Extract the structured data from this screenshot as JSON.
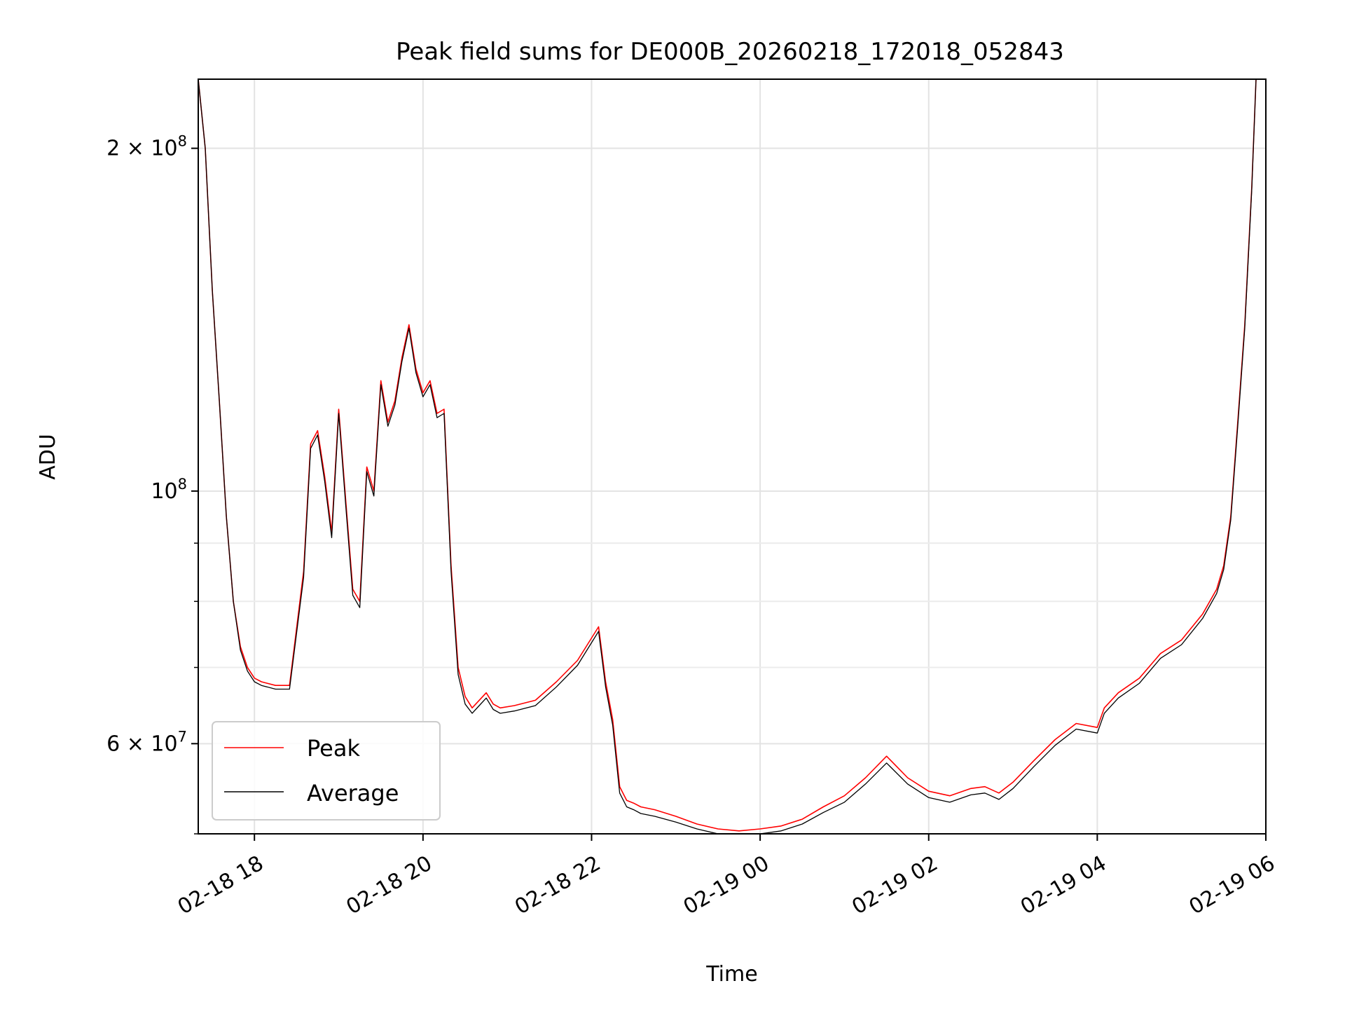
{
  "chart_data": {
    "type": "line",
    "title": "Peak field sums for DE000B_20260218_172018_052843",
    "xlabel": "Time",
    "ylabel": "ADU",
    "xlim": [
      "2026-02-18 17:20",
      "2026-02-19 06:00"
    ],
    "ylim": [
      50000000,
      230000000
    ],
    "yscale": "log",
    "grid": true,
    "legend_position": "lower-left",
    "x_ticks": [
      {
        "t": "2026-02-18 18:00",
        "label": "02-18 18"
      },
      {
        "t": "2026-02-18 20:00",
        "label": "02-18 20"
      },
      {
        "t": "2026-02-18 22:00",
        "label": "02-18 22"
      },
      {
        "t": "2026-02-19 00:00",
        "label": "02-19 00"
      },
      {
        "t": "2026-02-19 02:00",
        "label": "02-19 02"
      },
      {
        "t": "2026-02-19 04:00",
        "label": "02-19 04"
      },
      {
        "t": "2026-02-19 06:00",
        "label": "02-19 06"
      }
    ],
    "y_ticks": [
      {
        "v": 200000000,
        "mantissa": "2",
        "exp": "8"
      },
      {
        "v": 100000000,
        "mantissa": "",
        "exp": "8"
      },
      {
        "v": 60000000,
        "mantissa": "6",
        "exp": "7"
      }
    ],
    "y_minor_ticks": [
      50000000,
      70000000,
      80000000,
      90000000
    ],
    "series": [
      {
        "name": "Peak",
        "color": "#ff0000",
        "x": [
          "2026-02-18 17:20",
          "2026-02-18 17:25",
          "2026-02-18 17:30",
          "2026-02-18 17:35",
          "2026-02-18 17:40",
          "2026-02-18 17:45",
          "2026-02-18 17:50",
          "2026-02-18 17:55",
          "2026-02-18 18:00",
          "2026-02-18 18:05",
          "2026-02-18 18:15",
          "2026-02-18 18:25",
          "2026-02-18 18:35",
          "2026-02-18 18:40",
          "2026-02-18 18:45",
          "2026-02-18 18:50",
          "2026-02-18 18:55",
          "2026-02-18 19:00",
          "2026-02-18 19:05",
          "2026-02-18 19:10",
          "2026-02-18 19:15",
          "2026-02-18 19:20",
          "2026-02-18 19:25",
          "2026-02-18 19:30",
          "2026-02-18 19:35",
          "2026-02-18 19:40",
          "2026-02-18 19:45",
          "2026-02-18 19:50",
          "2026-02-18 19:55",
          "2026-02-18 20:00",
          "2026-02-18 20:05",
          "2026-02-18 20:10",
          "2026-02-18 20:15",
          "2026-02-18 20:20",
          "2026-02-18 20:25",
          "2026-02-18 20:30",
          "2026-02-18 20:35",
          "2026-02-18 20:40",
          "2026-02-18 20:45",
          "2026-02-18 20:50",
          "2026-02-18 20:55",
          "2026-02-18 21:05",
          "2026-02-18 21:20",
          "2026-02-18 21:35",
          "2026-02-18 21:50",
          "2026-02-18 22:05",
          "2026-02-18 22:10",
          "2026-02-18 22:15",
          "2026-02-18 22:20",
          "2026-02-18 22:25",
          "2026-02-18 22:30",
          "2026-02-18 22:35",
          "2026-02-18 22:45",
          "2026-02-18 23:00",
          "2026-02-18 23:15",
          "2026-02-18 23:30",
          "2026-02-18 23:45",
          "2026-02-19 00:00",
          "2026-02-19 00:15",
          "2026-02-19 00:30",
          "2026-02-19 00:45",
          "2026-02-19 01:00",
          "2026-02-19 01:15",
          "2026-02-19 01:30",
          "2026-02-19 01:45",
          "2026-02-19 02:00",
          "2026-02-19 02:15",
          "2026-02-19 02:30",
          "2026-02-19 02:40",
          "2026-02-19 02:50",
          "2026-02-19 03:00",
          "2026-02-19 03:15",
          "2026-02-19 03:30",
          "2026-02-19 03:45",
          "2026-02-19 04:00",
          "2026-02-19 04:05",
          "2026-02-19 04:15",
          "2026-02-19 04:30",
          "2026-02-19 04:45",
          "2026-02-19 05:00",
          "2026-02-19 05:15",
          "2026-02-19 05:25",
          "2026-02-19 05:30",
          "2026-02-19 05:35",
          "2026-02-19 05:40",
          "2026-02-19 05:45",
          "2026-02-19 05:50",
          "2026-02-19 05:53"
        ],
        "values": [
          230000000,
          200000000,
          150000000,
          120000000,
          95000000,
          80000000,
          73000000,
          70000000,
          68500000,
          68000000,
          67500000,
          67500000,
          85000000,
          110000000,
          113000000,
          103000000,
          92000000,
          118000000,
          98000000,
          82000000,
          80000000,
          105000000,
          100000000,
          125000000,
          115000000,
          120000000,
          131000000,
          140000000,
          128000000,
          122000000,
          125000000,
          117000000,
          118000000,
          86000000,
          70000000,
          66000000,
          64500000,
          65500000,
          66500000,
          65000000,
          64500000,
          64800000,
          65500000,
          68000000,
          71000000,
          76000000,
          68000000,
          63000000,
          55000000,
          53500000,
          53200000,
          52800000,
          52500000,
          51800000,
          51000000,
          50500000,
          50300000,
          50500000,
          50800000,
          51500000,
          52800000,
          54000000,
          56000000,
          58500000,
          56000000,
          54500000,
          54000000,
          54800000,
          55000000,
          54300000,
          55500000,
          58000000,
          60500000,
          62500000,
          62000000,
          64500000,
          66500000,
          68500000,
          72000000,
          74000000,
          78000000,
          82000000,
          86000000,
          95000000,
          115000000,
          140000000,
          185000000,
          230000000
        ]
      },
      {
        "name": "Average",
        "color": "#000000",
        "x": [
          "2026-02-18 17:20",
          "2026-02-18 17:25",
          "2026-02-18 17:30",
          "2026-02-18 17:35",
          "2026-02-18 17:40",
          "2026-02-18 17:45",
          "2026-02-18 17:50",
          "2026-02-18 17:55",
          "2026-02-18 18:00",
          "2026-02-18 18:05",
          "2026-02-18 18:15",
          "2026-02-18 18:25",
          "2026-02-18 18:35",
          "2026-02-18 18:40",
          "2026-02-18 18:45",
          "2026-02-18 18:50",
          "2026-02-18 18:55",
          "2026-02-18 19:00",
          "2026-02-18 19:05",
          "2026-02-18 19:10",
          "2026-02-18 19:15",
          "2026-02-18 19:20",
          "2026-02-18 19:25",
          "2026-02-18 19:30",
          "2026-02-18 19:35",
          "2026-02-18 19:40",
          "2026-02-18 19:45",
          "2026-02-18 19:50",
          "2026-02-18 19:55",
          "2026-02-18 20:00",
          "2026-02-18 20:05",
          "2026-02-18 20:10",
          "2026-02-18 20:15",
          "2026-02-18 20:20",
          "2026-02-18 20:25",
          "2026-02-18 20:30",
          "2026-02-18 20:35",
          "2026-02-18 20:40",
          "2026-02-18 20:45",
          "2026-02-18 20:50",
          "2026-02-18 20:55",
          "2026-02-18 21:05",
          "2026-02-18 21:20",
          "2026-02-18 21:35",
          "2026-02-18 21:50",
          "2026-02-18 22:05",
          "2026-02-18 22:10",
          "2026-02-18 22:15",
          "2026-02-18 22:20",
          "2026-02-18 22:25",
          "2026-02-18 22:30",
          "2026-02-18 22:35",
          "2026-02-18 22:45",
          "2026-02-18 23:00",
          "2026-02-18 23:15",
          "2026-02-18 23:30",
          "2026-02-18 23:45",
          "2026-02-19 00:00",
          "2026-02-19 00:15",
          "2026-02-19 00:30",
          "2026-02-19 00:45",
          "2026-02-19 01:00",
          "2026-02-19 01:15",
          "2026-02-19 01:30",
          "2026-02-19 01:45",
          "2026-02-19 02:00",
          "2026-02-19 02:15",
          "2026-02-19 02:30",
          "2026-02-19 02:40",
          "2026-02-19 02:50",
          "2026-02-19 03:00",
          "2026-02-19 03:15",
          "2026-02-19 03:30",
          "2026-02-19 03:45",
          "2026-02-19 04:00",
          "2026-02-19 04:05",
          "2026-02-19 04:15",
          "2026-02-19 04:30",
          "2026-02-19 04:45",
          "2026-02-19 05:00",
          "2026-02-19 05:15",
          "2026-02-19 05:25",
          "2026-02-19 05:30",
          "2026-02-19 05:35",
          "2026-02-19 05:40",
          "2026-02-19 05:45",
          "2026-02-19 05:50",
          "2026-02-19 05:53"
        ],
        "values": [
          230000000,
          200000000,
          150000000,
          120000000,
          95000000,
          80000000,
          72500000,
          69500000,
          68000000,
          67500000,
          67000000,
          67000000,
          84000000,
          109000000,
          112000000,
          102000000,
          91000000,
          117000000,
          97000000,
          81000000,
          79000000,
          104000000,
          99000000,
          124000000,
          114000000,
          119000000,
          130000000,
          139000000,
          127000000,
          121000000,
          124000000,
          116000000,
          117000000,
          85000000,
          69000000,
          65000000,
          63800000,
          64800000,
          65800000,
          64300000,
          63800000,
          64100000,
          64800000,
          67300000,
          70300000,
          75300000,
          67300000,
          62300000,
          54300000,
          52800000,
          52500000,
          52100000,
          51800000,
          51200000,
          50500000,
          50000000,
          49800000,
          50000000,
          50300000,
          51000000,
          52200000,
          53300000,
          55300000,
          57700000,
          55300000,
          53800000,
          53300000,
          54100000,
          54300000,
          53600000,
          54800000,
          57300000,
          59800000,
          61800000,
          61300000,
          63800000,
          65800000,
          67800000,
          71300000,
          73300000,
          77300000,
          81300000,
          85300000,
          94300000,
          114000000,
          139000000,
          184000000,
          230000000
        ]
      }
    ]
  }
}
